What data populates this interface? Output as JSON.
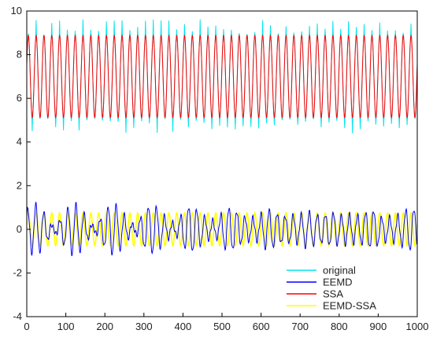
{
  "chart_data": {
    "type": "line",
    "title": "",
    "xlabel": "",
    "ylabel": "",
    "xlim": [
      0,
      1000
    ],
    "ylim": [
      -4,
      10
    ],
    "xticks": [
      0,
      100,
      200,
      300,
      400,
      500,
      600,
      700,
      800,
      900,
      1000
    ],
    "yticks": [
      -4,
      -2,
      0,
      2,
      4,
      6,
      8,
      10
    ],
    "grid": false,
    "legend_position": "bottom-right",
    "period": 20,
    "series": [
      {
        "name": "original",
        "color": "#00e5ee",
        "center": 7.0,
        "amplitude": 1.9,
        "spikes": {
          "high_max": 9.7,
          "low_min": 4.3
        }
      },
      {
        "name": "EEMD",
        "color": "#0000ff",
        "center": 0.0,
        "amplitude_range": [
          0.3,
          1.45
        ],
        "max": 1.3,
        "min": -1.5
      },
      {
        "name": "SSA",
        "color": "#ff0000",
        "center": 7.0,
        "amplitude": 1.9
      },
      {
        "name": "EEMD-SSA",
        "color": "#ffff00",
        "center": 0.0,
        "amplitude": 0.75
      }
    ]
  }
}
